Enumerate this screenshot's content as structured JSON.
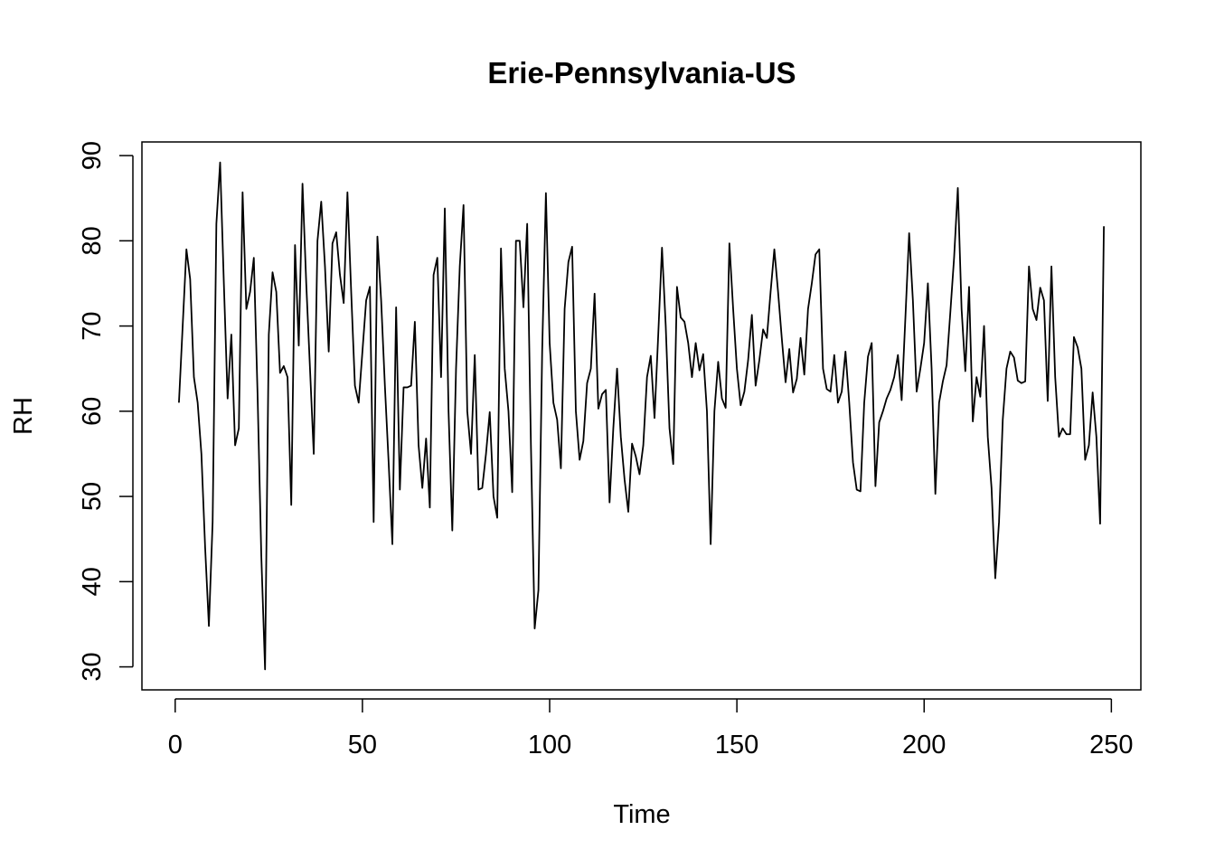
{
  "chart_data": {
    "type": "line",
    "title": "Erie-Pennsylvania-US",
    "x_label": "Time",
    "y_label": "RH",
    "x": [
      1,
      2,
      3,
      4,
      5,
      6,
      7,
      8,
      9,
      10,
      11,
      12,
      13,
      14,
      15,
      16,
      17,
      18,
      19,
      20,
      21,
      22,
      23,
      24,
      25,
      26,
      27,
      28,
      29,
      30,
      31,
      32,
      33,
      34,
      35,
      36,
      37,
      38,
      39,
      40,
      41,
      42,
      43,
      44,
      45,
      46,
      47,
      48,
      49,
      50,
      51,
      52,
      53,
      54,
      55,
      56,
      57,
      58,
      59,
      60,
      61,
      62,
      63,
      64,
      65,
      66,
      67,
      68,
      69,
      70,
      71,
      72,
      73,
      74,
      75,
      76,
      77,
      78,
      79,
      80,
      81,
      82,
      83,
      84,
      85,
      86,
      87,
      88,
      89,
      90,
      91,
      92,
      93,
      94,
      95,
      96,
      97,
      98,
      99,
      100,
      101,
      102,
      103,
      104,
      105,
      106,
      107,
      108,
      109,
      110,
      111,
      112,
      113,
      114,
      115,
      116,
      117,
      118,
      119,
      120,
      121,
      122,
      123,
      124,
      125,
      126,
      127,
      128,
      129,
      130,
      131,
      132,
      133,
      134,
      135,
      136,
      137,
      138,
      139,
      140,
      141,
      142,
      143,
      144,
      145,
      146,
      147,
      148,
      149,
      150,
      151,
      152,
      153,
      154,
      155,
      156,
      157,
      158,
      159,
      160,
      161,
      162,
      163,
      164,
      165,
      166,
      167,
      168,
      169,
      170,
      171,
      172,
      173,
      174,
      175,
      176,
      177,
      178,
      179,
      180,
      181,
      182,
      183,
      184,
      185,
      186,
      187,
      188,
      189,
      190,
      191,
      192,
      193,
      194,
      195,
      196,
      197,
      198,
      199,
      200,
      201,
      202,
      203,
      204,
      205,
      206,
      207,
      208,
      209,
      210,
      211,
      212,
      213,
      214,
      215,
      216,
      217,
      218,
      219,
      220,
      221,
      222,
      223,
      224,
      225,
      226,
      227,
      228,
      229,
      230,
      231,
      232,
      233,
      234,
      235,
      236,
      237,
      238,
      239,
      240,
      241,
      242,
      243,
      244,
      245,
      246,
      247,
      248
    ],
    "series": [
      {
        "name": "RH",
        "color": "#000000",
        "values": [
          61,
          70,
          79,
          75.5,
          64,
          61,
          55,
          44,
          34.8,
          47,
          82,
          89.2,
          75,
          61.5,
          69,
          56,
          58,
          85.7,
          72,
          74,
          78,
          62,
          43,
          29.7,
          69,
          76.3,
          74,
          64.5,
          65.3,
          64,
          49,
          79.5,
          67.7,
          86.7,
          75,
          65,
          55,
          80,
          84.6,
          77,
          67,
          79.7,
          81,
          76,
          72.7,
          85.7,
          74,
          63,
          61,
          67,
          73,
          74.6,
          47,
          80.5,
          73,
          63,
          54,
          44.4,
          72.2,
          50.8,
          62.8,
          62.8,
          63,
          70.5,
          56,
          51,
          56.8,
          48.7,
          76,
          78,
          64,
          83.8,
          60,
          46,
          65,
          77,
          84.2,
          60,
          55,
          66.6,
          50.8,
          51,
          55,
          59.9,
          50,
          47.5,
          79.1,
          65,
          60,
          50.5,
          80,
          80,
          72.2,
          82,
          56,
          34.5,
          39,
          67,
          85.6,
          68,
          61,
          59,
          53.3,
          72,
          77.5,
          79.3,
          60,
          54.3,
          56.5,
          63.3,
          65,
          73.8,
          60.3,
          62,
          62.5,
          49.3,
          58,
          65,
          57,
          52,
          48.2,
          56.2,
          54.7,
          52.6,
          56,
          64,
          66.5,
          59.2,
          69,
          79.2,
          70,
          58,
          53.8,
          74.6,
          71,
          70.5,
          68,
          64,
          68,
          64.8,
          66.7,
          60,
          44.4,
          60,
          65.8,
          61.5,
          60.4,
          79.7,
          72,
          65,
          60.7,
          62.3,
          66,
          71.3,
          63,
          66,
          69.6,
          68.6,
          74,
          79,
          74,
          68.5,
          63.4,
          67.3,
          62.2,
          63.8,
          68.6,
          64.3,
          72,
          75,
          78.4,
          79,
          65,
          62.6,
          62.3,
          66.6,
          61,
          62.3,
          67,
          61,
          54,
          50.8,
          50.6,
          61,
          66.4,
          68,
          51.2,
          58.7,
          60,
          61.5,
          62.5,
          64,
          66.6,
          61.3,
          71,
          80.9,
          73,
          62.3,
          65,
          68,
          75,
          65,
          50.3,
          61,
          63.5,
          65.4,
          71.6,
          78,
          86.2,
          72,
          64.7,
          74.6,
          58.8,
          64,
          61.7,
          70,
          57,
          51,
          40.4,
          47,
          59,
          65,
          67,
          66.3,
          63.6,
          63.3,
          63.5,
          77,
          72,
          70.7,
          74.5,
          73,
          61.2,
          77,
          64,
          57,
          58,
          57.3,
          57.3,
          68.7,
          67.5,
          65,
          54.3,
          56,
          62.2,
          57,
          46.8,
          81.7
        ]
      }
    ],
    "xlim": [
      -8.88,
      257.88
    ],
    "xticks": [
      0,
      50,
      100,
      150,
      200,
      250
    ],
    "ylim": [
      27.3,
      91.6
    ],
    "yticks": [
      30,
      40,
      50,
      60,
      70,
      80,
      90
    ],
    "grid": false
  }
}
